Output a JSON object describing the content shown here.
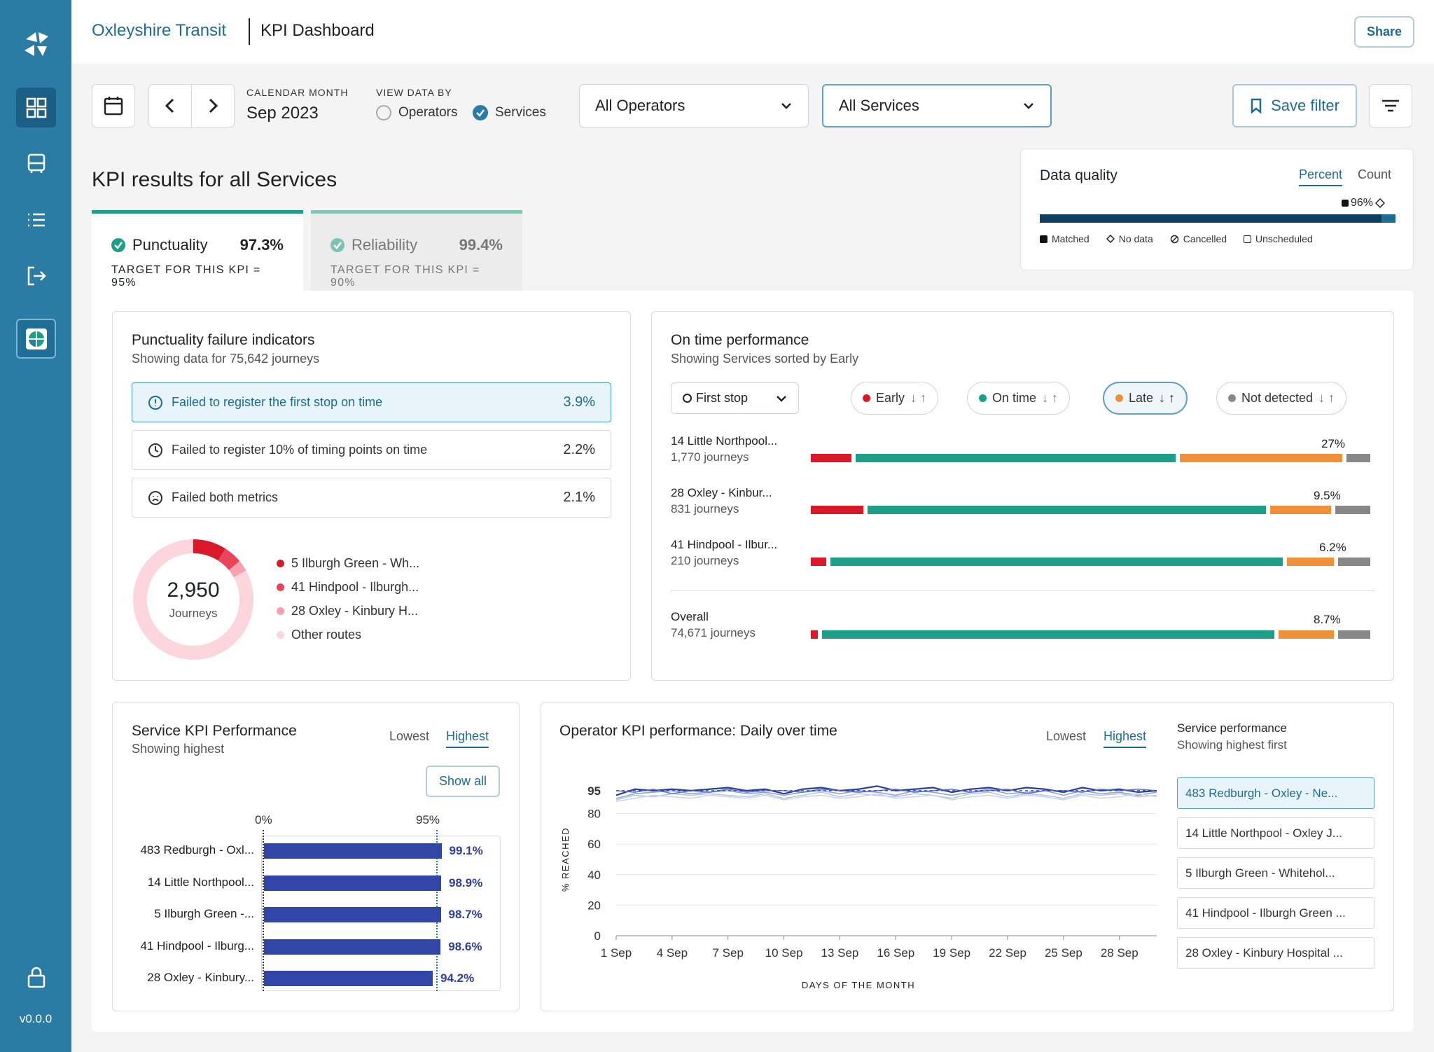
{
  "app": {
    "brand": "Oxleyshire Transit",
    "title": "KPI Dashboard",
    "share_label": "Share",
    "version": "v0.0.0"
  },
  "filters": {
    "calendar_label": "CALENDAR MONTH",
    "month": "Sep 2023",
    "view_label": "VIEW DATA BY",
    "view_options": [
      "Operators",
      "Services"
    ],
    "view_selected": "Services",
    "operator_select": "All Operators",
    "service_select": "All Services",
    "save_filter": "Save filter"
  },
  "kpi": {
    "heading": "KPI results for all Services",
    "tabs": [
      {
        "name": "Punctuality",
        "value": "97.3%",
        "target": "TARGET FOR THIS KPI = 95%"
      },
      {
        "name": "Reliability",
        "value": "99.4%",
        "target": "TARGET FOR THIS KPI = 90%"
      }
    ]
  },
  "data_quality": {
    "title": "Data quality",
    "toggle": [
      "Percent",
      "Count"
    ],
    "selected": "Percent",
    "matched_pct": "96%",
    "matched_fraction": 0.96,
    "legend": [
      "Matched",
      "No data",
      "Cancelled",
      "Unscheduled"
    ]
  },
  "failure": {
    "title": "Punctuality failure indicators",
    "subtitle": "Showing data for 75,642 journeys",
    "indicators": [
      {
        "label": "Failed to register the first stop on time",
        "value": "3.9%"
      },
      {
        "label": "Failed to register 10% of timing points on time",
        "value": "2.2%"
      },
      {
        "label": "Failed both metrics",
        "value": "2.1%"
      }
    ],
    "donut_value": "2,950",
    "donut_label": "Journeys",
    "legend": [
      {
        "label": "5 Ilburgh Green - Wh...",
        "color": "#d9182a"
      },
      {
        "label": "41 Hindpool - Ilburgh...",
        "color": "#e8455a"
      },
      {
        "label": "28 Oxley - Kinbury H...",
        "color": "#f4a3ae"
      },
      {
        "label": "Other routes",
        "color": "#fcd6dc"
      }
    ],
    "donut_fractions": [
      0.09,
      0.05,
      0.03,
      0.83
    ]
  },
  "ontime": {
    "title": "On time performance",
    "subtitle": "Showing Services sorted by Early",
    "stop_select": "First stop",
    "pills": [
      "Early",
      "On time",
      "Late",
      "Not detected"
    ],
    "rows": [
      {
        "name": "14 Little Northpool...",
        "journeys": "1,770 journeys",
        "pct": "27%",
        "early": 0.08,
        "ontime": 0.575,
        "late": 0.295,
        "nd": 0.05
      },
      {
        "name": "28 Oxley - Kinbur...",
        "journeys": "831 journeys",
        "pct": "9.5%",
        "early": 0.1,
        "ontime": 0.715,
        "late": 0.115,
        "nd": 0.07
      },
      {
        "name": "41 Hindpool - Ilbur...",
        "journeys": "210 journeys",
        "pct": "6.2%",
        "early": 0.035,
        "ontime": 0.81,
        "late": 0.09,
        "nd": 0.065
      },
      {
        "name": "Overall",
        "journeys": "74,671 journeys",
        "pct": "8.7%",
        "early": 0.02,
        "ontime": 0.81,
        "late": 0.105,
        "nd": 0.065
      }
    ]
  },
  "service_kpi": {
    "title": "Service KPI Performance",
    "subtitle": "Showing highest",
    "toggle": [
      "Lowest",
      "Highest"
    ],
    "selected": "Highest",
    "show_all": "Show all",
    "axis": [
      "0%",
      "95%"
    ],
    "items": [
      {
        "name": "483 Redburgh - Oxl...",
        "value": 99.1,
        "label": "99.1%"
      },
      {
        "name": "14 Little Northpool...",
        "value": 98.9,
        "label": "98.9%"
      },
      {
        "name": "5 Ilburgh Green -...",
        "value": 98.7,
        "label": "98.7%"
      },
      {
        "name": "41 Hindpool - Ilburg...",
        "value": 98.6,
        "label": "98.6%"
      },
      {
        "name": "28 Oxley - Kinbury...",
        "value": 94.2,
        "label": "94.2%"
      }
    ]
  },
  "operator": {
    "title": "Operator KPI performance: Daily over time",
    "toggle": [
      "Lowest",
      "Highest"
    ],
    "selected": "Highest",
    "ylabel": "% REACHED",
    "xlabel": "DAYS OF THE MONTH",
    "sp_title": "Service performance",
    "sp_subtitle": "Showing highest first",
    "services": [
      "483 Redburgh - Oxley - Ne...",
      "14 Little Northpool - Oxley J...",
      "5 Ilburgh Green - Whitehol...",
      "41 Hindpool - Ilburgh Green ...",
      "28 Oxley - Kinbury Hospital ..."
    ]
  },
  "chart_data": {
    "type": "line",
    "title": "Operator KPI performance: Daily over time",
    "xlabel": "DAYS OF THE MONTH",
    "ylabel": "% REACHED",
    "x_ticks": [
      "1 Sep",
      "4 Sep",
      "7 Sep",
      "10 Sep",
      "13 Sep",
      "16 Sep",
      "19 Sep",
      "22 Sep",
      "25 Sep",
      "28 Sep"
    ],
    "y_ticks": [
      0,
      20,
      40,
      60,
      80,
      95
    ],
    "ylim": [
      0,
      100
    ],
    "target": 95,
    "x": [
      1,
      2,
      3,
      4,
      5,
      6,
      7,
      8,
      9,
      10,
      11,
      12,
      13,
      14,
      15,
      16,
      17,
      18,
      19,
      20,
      21,
      22,
      23,
      24,
      25,
      26,
      27,
      28,
      29,
      30
    ],
    "series": [
      {
        "values": [
          92,
          96,
          95,
          96,
          95,
          96,
          97,
          95,
          96,
          93,
          96,
          97,
          95,
          96,
          98,
          95,
          96,
          97,
          94,
          96,
          97,
          95,
          97,
          96,
          94,
          97,
          95,
          96,
          94,
          95
        ]
      },
      {
        "values": [
          90,
          93,
          94,
          95,
          93,
          94,
          95,
          93,
          94,
          92,
          94,
          95,
          93,
          95,
          94,
          92,
          95,
          94,
          92,
          94,
          96,
          93,
          94,
          95,
          92,
          95,
          93,
          94,
          92,
          94
        ]
      },
      {
        "values": [
          89,
          92,
          91,
          93,
          92,
          93,
          92,
          91,
          93,
          90,
          92,
          94,
          91,
          93,
          92,
          91,
          93,
          92,
          90,
          93,
          94,
          91,
          93,
          92,
          90,
          93,
          92,
          93,
          91,
          92
        ]
      },
      {
        "values": [
          95,
          94,
          96,
          93,
          95,
          94,
          96,
          94,
          95,
          95,
          94,
          96,
          95,
          94,
          95,
          96,
          94,
          95,
          96,
          94,
          95,
          96,
          93,
          95,
          95,
          94,
          96,
          95,
          96,
          95
        ]
      },
      {
        "values": [
          88,
          90,
          92,
          91,
          90,
          92,
          91,
          90,
          92,
          89,
          91,
          92,
          90,
          91,
          93,
          90,
          91,
          92,
          89,
          91,
          92,
          90,
          92,
          91,
          89,
          92,
          90,
          91,
          93,
          91
        ]
      }
    ]
  }
}
